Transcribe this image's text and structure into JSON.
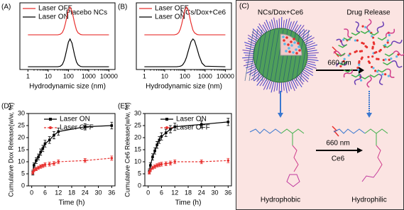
{
  "chart_data": [
    {
      "type": "line",
      "panel_label": "(A)",
      "annotation": "Placebo NCs",
      "xlabel": "Hydrodynamic size (nm)",
      "log_x": true,
      "x": [
        1,
        10,
        30,
        40,
        50,
        60,
        70,
        80,
        100,
        120,
        150,
        200,
        250,
        300,
        400,
        500,
        700,
        1000,
        10000
      ],
      "xlim": [
        0.4,
        20000
      ],
      "xticks": [
        1,
        10,
        100,
        1000,
        10000
      ],
      "ylim": [
        0,
        2.4
      ],
      "legend": "upper left",
      "series": [
        {
          "name": "Laser OFF",
          "color": "#e8312f",
          "values": [
            1.25,
            1.25,
            1.25,
            1.27,
            1.33,
            1.46,
            1.64,
            1.83,
            2.14,
            2.25,
            2.1,
            1.68,
            1.42,
            1.32,
            1.26,
            1.25,
            1.25,
            1.25,
            1.25
          ]
        },
        {
          "name": "Laser ON",
          "color": "#000000",
          "values": [
            0.1,
            0.1,
            0.1,
            0.12,
            0.18,
            0.31,
            0.49,
            0.68,
            0.99,
            1.1,
            0.95,
            0.53,
            0.27,
            0.17,
            0.11,
            0.1,
            0.1,
            0.1,
            0.1
          ]
        }
      ]
    },
    {
      "type": "line",
      "panel_label": "(B)",
      "annotation": "NCs/Dox+Ce6",
      "xlabel": "Hydrodynamic size (nm)",
      "log_x": true,
      "x": [
        1,
        10,
        30,
        40,
        50,
        60,
        70,
        80,
        100,
        120,
        150,
        200,
        250,
        300,
        400,
        500,
        700,
        1000,
        10000
      ],
      "xlim": [
        0.4,
        20000
      ],
      "xticks": [
        1,
        10,
        100,
        1000,
        10000
      ],
      "ylim": [
        0,
        2.4
      ],
      "legend": "upper left",
      "series": [
        {
          "name": "Laser OFF",
          "color": "#e8312f",
          "values": [
            1.25,
            1.25,
            1.25,
            1.27,
            1.33,
            1.46,
            1.64,
            1.83,
            2.14,
            2.25,
            2.1,
            1.68,
            1.42,
            1.32,
            1.26,
            1.25,
            1.25,
            1.25,
            1.25
          ]
        },
        {
          "name": "Laser ON",
          "color": "#000000",
          "values": [
            0.1,
            0.1,
            0.1,
            0.1,
            0.11,
            0.12,
            0.14,
            0.18,
            0.29,
            0.44,
            0.69,
            1.0,
            1.1,
            1.04,
            0.75,
            0.5,
            0.23,
            0.12,
            0.1
          ]
        }
      ]
    },
    {
      "type": "line",
      "panel_label": "(D)",
      "xlabel": "Time (h)",
      "ylabel": "Cumulative Dox Release(w/w, %)",
      "x": [
        0.5,
        1,
        2,
        3,
        4,
        5,
        6,
        8,
        10,
        12,
        24,
        36
      ],
      "xlim": [
        -1.5,
        37.5
      ],
      "xticks": [
        0,
        6,
        12,
        18,
        24,
        30,
        36
      ],
      "ylim": [
        0,
        30
      ],
      "yticks": [
        0,
        5,
        10,
        15,
        20,
        25,
        30
      ],
      "legend": "upper center",
      "series": [
        {
          "name": "Laser ON",
          "color": "#000000",
          "linestyle": "solid",
          "marker": "square",
          "values": [
            5.5,
            8.5,
            10.5,
            12,
            14,
            15.5,
            17.5,
            19,
            21,
            22.5,
            24.5,
            25
          ],
          "errors": [
            1,
            1,
            1.2,
            1.2,
            1.3,
            1.3,
            1.4,
            1.4,
            1.5,
            1.5,
            1.3,
            1.4
          ]
        },
        {
          "name": "Laser OFF",
          "color": "#e8312f",
          "linestyle": "dashed",
          "marker": "circle",
          "values": [
            5.5,
            6.5,
            7,
            7.5,
            8,
            8.3,
            8.8,
            9,
            9.3,
            10,
            10.5,
            11.5
          ],
          "errors": [
            0.6,
            0.6,
            0.7,
            0.7,
            0.7,
            0.7,
            0.8,
            0.8,
            0.8,
            0.8,
            0.8,
            0.9
          ]
        }
      ]
    },
    {
      "type": "line",
      "panel_label": "(E)",
      "xlabel": "Time (h)",
      "ylabel": "Cumulative Ce6 Release(w/w, %)",
      "x": [
        0.5,
        1,
        2,
        3,
        4,
        5,
        6,
        8,
        10,
        12,
        24,
        36
      ],
      "xlim": [
        -1.5,
        37.5
      ],
      "xticks": [
        0,
        6,
        12,
        18,
        24,
        30,
        36
      ],
      "ylim": [
        0,
        30
      ],
      "yticks": [
        0,
        5,
        10,
        15,
        20,
        25,
        30
      ],
      "legend": "upper center",
      "series": [
        {
          "name": "Laser ON",
          "color": "#000000",
          "linestyle": "solid",
          "marker": "square",
          "values": [
            6,
            8.5,
            12,
            14.5,
            17,
            19,
            20.5,
            22,
            23.5,
            24.5,
            25.5,
            26.5
          ],
          "errors": [
            1,
            1.1,
            1.3,
            1.3,
            1.4,
            1.4,
            1.5,
            1.5,
            1.5,
            1.5,
            1.4,
            1.5
          ]
        },
        {
          "name": "Laser OFF",
          "color": "#e8312f",
          "linestyle": "dashed",
          "marker": "circle",
          "values": [
            5.5,
            6.5,
            7.5,
            8,
            8.5,
            8.8,
            9,
            9.2,
            9.5,
            10,
            10,
            10.5
          ],
          "errors": [
            0.6,
            0.6,
            0.7,
            0.7,
            0.7,
            0.8,
            0.8,
            0.8,
            0.8,
            0.8,
            0.8,
            0.9
          ]
        }
      ]
    }
  ],
  "diagram": {
    "panel_label": "(C)",
    "top_left": "NCs/Dox+Ce6",
    "top_right": "Drug Release",
    "arrow_top": "660 nm",
    "arrow_bottom": "660 nm",
    "arrow_bottom_sub": "Ce6",
    "bottom_left": "Hydrophobic",
    "bottom_right": "Hydrophilic"
  }
}
